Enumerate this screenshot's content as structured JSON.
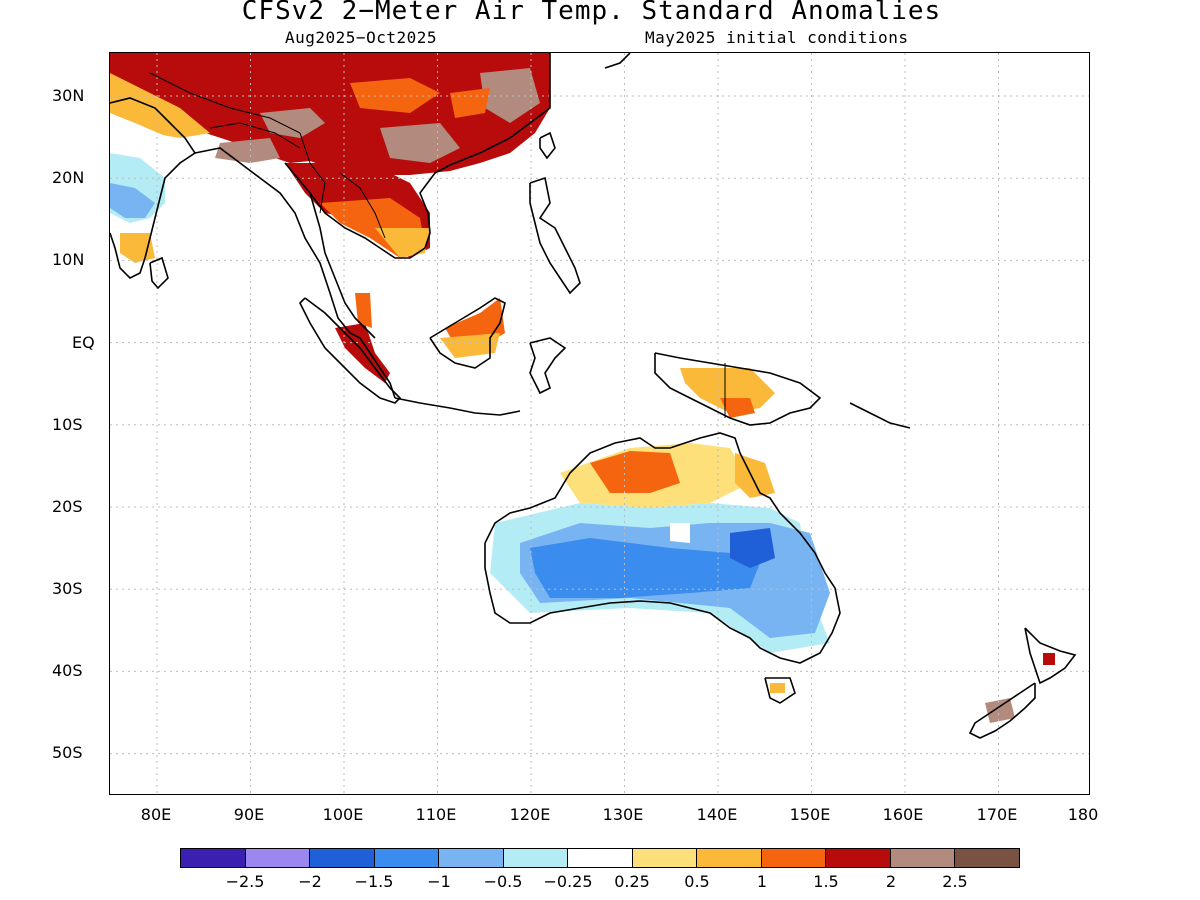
{
  "title": "CFSv2 2−Meter Air Temp. Standard Anomalies",
  "subtitle_left": "Aug2025−Oct2025",
  "subtitle_right": "May2025 initial conditions",
  "lat_labels": [
    "30N",
    "20N",
    "10N",
    "EQ",
    "10S",
    "20S",
    "30S",
    "40S",
    "50S"
  ],
  "lon_labels": [
    "80E",
    "90E",
    "100E",
    "110E",
    "120E",
    "130E",
    "140E",
    "150E",
    "160E",
    "170E",
    "180"
  ],
  "colorbar": {
    "labels": [
      "−2.5",
      "−2",
      "−1.5",
      "−1",
      "−0.5",
      "−0.25",
      "0.25",
      "0.5",
      "1",
      "1.5",
      "2",
      "2.5"
    ],
    "colors": [
      "#3a1fb0",
      "#9b87ef",
      "#1f5fd8",
      "#3a8cee",
      "#79b4f2",
      "#b4ecf6",
      "#ffffff",
      "#fde07a",
      "#fbb93a",
      "#f5650f",
      "#b80b0b",
      "#b38a7e",
      "#7a5244"
    ]
  },
  "map": {
    "region": "75E–180E, 55S–35N",
    "anomaly_areas": [
      {
        "name": "east-asia-warm",
        "level": "2.5"
      },
      {
        "name": "southeast-asia-warm",
        "level": "2"
      },
      {
        "name": "india-cool",
        "level": "-1"
      },
      {
        "name": "australia-interior-cool",
        "level": "-1.5"
      },
      {
        "name": "northern-australia-warm",
        "level": "1.5"
      },
      {
        "name": "borneo-warm",
        "level": "1.5"
      },
      {
        "name": "sumatra-warm",
        "level": "2"
      },
      {
        "name": "new-guinea-warm",
        "level": "1"
      },
      {
        "name": "new-zealand-warm",
        "level": "2.5"
      }
    ]
  }
}
